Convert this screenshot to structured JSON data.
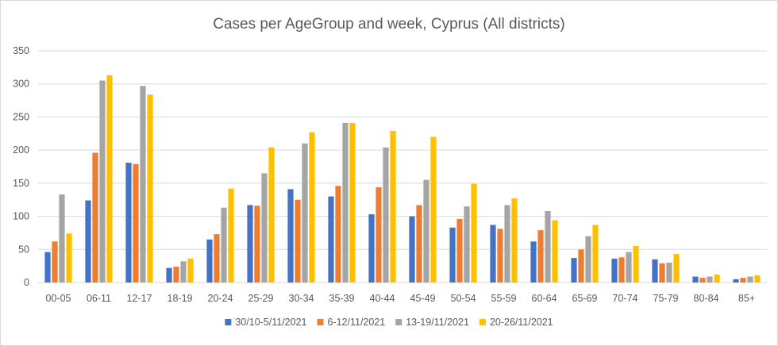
{
  "chart_data": {
    "type": "bar",
    "title": "Cases per AgeGroup and week, Cyprus (All districts)",
    "xlabel": "",
    "ylabel": "",
    "ylim": [
      0,
      350
    ],
    "yticks": [
      0,
      50,
      100,
      150,
      200,
      250,
      300,
      350
    ],
    "grid": true,
    "legend_position": "bottom",
    "categories": [
      "00-05",
      "06-11",
      "12-17",
      "18-19",
      "20-24",
      "25-29",
      "30-34",
      "35-39",
      "40-44",
      "45-49",
      "50-54",
      "55-59",
      "60-64",
      "65-69",
      "70-74",
      "75-79",
      "80-84",
      "85+"
    ],
    "series": [
      {
        "name": "30/10-5/11/2021",
        "color": "#4472C4",
        "values": [
          46,
          124,
          181,
          22,
          65,
          117,
          141,
          130,
          103,
          100,
          83,
          87,
          62,
          37,
          36,
          35,
          9,
          5
        ]
      },
      {
        "name": "6-12/11/2021",
        "color": "#ED7D31",
        "values": [
          62,
          196,
          179,
          24,
          73,
          116,
          125,
          146,
          144,
          117,
          96,
          81,
          79,
          50,
          38,
          29,
          7,
          7
        ]
      },
      {
        "name": "13-19/11/2021",
        "color": "#A5A5A5",
        "values": [
          133,
          305,
          297,
          32,
          113,
          165,
          210,
          241,
          204,
          155,
          115,
          117,
          108,
          70,
          46,
          30,
          9,
          9
        ]
      },
      {
        "name": "20-26/11/2021",
        "color": "#FFC000",
        "values": [
          74,
          313,
          284,
          36,
          142,
          204,
          227,
          241,
          229,
          220,
          149,
          127,
          94,
          87,
          55,
          43,
          12,
          11
        ]
      }
    ]
  }
}
